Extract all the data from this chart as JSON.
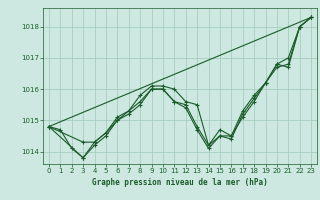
{
  "xlabel": "Graphe pression niveau de la mer (hPa)",
  "background_color": "#cde8e0",
  "grid_color": "#a0c8b8",
  "line_color": "#1a5c2a",
  "xlim": [
    -0.5,
    23.5
  ],
  "ylim": [
    1013.6,
    1018.6
  ],
  "yticks": [
    1014,
    1015,
    1016,
    1017,
    1018
  ],
  "xticks": [
    0,
    1,
    2,
    3,
    4,
    5,
    6,
    7,
    8,
    9,
    10,
    11,
    12,
    13,
    14,
    15,
    16,
    17,
    18,
    19,
    20,
    21,
    22,
    23
  ],
  "line1": {
    "x": [
      0,
      1,
      2,
      3,
      4,
      5,
      6,
      7,
      8,
      9,
      10,
      11,
      12,
      13,
      14,
      15,
      16,
      17,
      18,
      19,
      20,
      21,
      22,
      23
    ],
    "y": [
      1014.8,
      1014.7,
      1014.1,
      1013.8,
      1014.3,
      1014.6,
      1015.1,
      1015.3,
      1015.8,
      1016.1,
      1016.1,
      1016.0,
      1015.6,
      1015.5,
      1014.2,
      1014.7,
      1014.5,
      1015.1,
      1015.6,
      1016.2,
      1016.8,
      1016.7,
      1018.0,
      1018.3
    ]
  },
  "line2": {
    "x": [
      0,
      3,
      4,
      5,
      6,
      7,
      8,
      9,
      10,
      11,
      12,
      13,
      14,
      15,
      16,
      17,
      18,
      19,
      20,
      21,
      22,
      23
    ],
    "y": [
      1014.8,
      1014.3,
      1014.3,
      1014.6,
      1015.0,
      1015.2,
      1015.5,
      1016.0,
      1016.0,
      1015.6,
      1015.5,
      1014.8,
      1014.2,
      1014.5,
      1014.4,
      1015.2,
      1015.7,
      1016.2,
      1016.8,
      1017.0,
      1018.0,
      1018.3
    ]
  },
  "line3": {
    "x": [
      0,
      23
    ],
    "y": [
      1014.8,
      1018.3
    ]
  },
  "line4": {
    "x": [
      0,
      3,
      4,
      5,
      6,
      7,
      8,
      9,
      10,
      11,
      12,
      13,
      14,
      15,
      16,
      17,
      18,
      19,
      20,
      21,
      22,
      23
    ],
    "y": [
      1014.8,
      1013.8,
      1014.2,
      1014.5,
      1015.0,
      1015.3,
      1015.6,
      1016.0,
      1016.0,
      1015.6,
      1015.4,
      1014.7,
      1014.1,
      1014.5,
      1014.5,
      1015.3,
      1015.8,
      1016.2,
      1016.7,
      1016.8,
      1018.0,
      1018.3
    ]
  }
}
